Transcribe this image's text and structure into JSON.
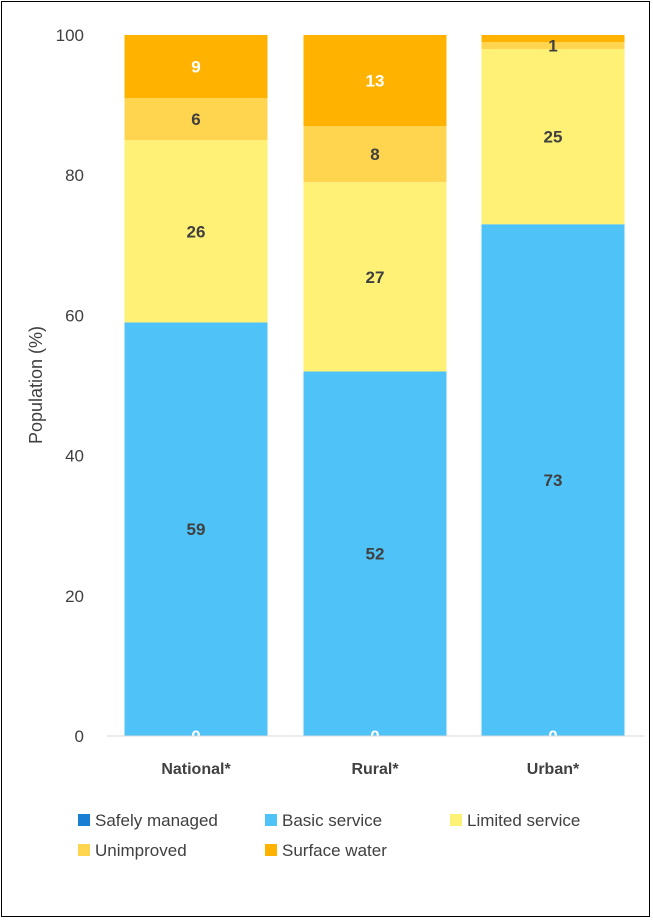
{
  "chart_data": {
    "type": "bar",
    "stacked": true,
    "categories": [
      "National*",
      "Rural*",
      "Urban*"
    ],
    "series": [
      {
        "name": "Safely managed",
        "values": [
          0,
          0,
          0
        ],
        "color": "#1a7ed4",
        "label_color": "#ffffff"
      },
      {
        "name": "Basic service",
        "values": [
          59,
          52,
          73
        ],
        "color": "#4fc3f7",
        "label_color": "#404040"
      },
      {
        "name": "Limited service",
        "values": [
          26,
          27,
          25
        ],
        "color": "#fff176",
        "label_color": "#404040"
      },
      {
        "name": "Unimproved",
        "values": [
          6,
          8,
          1
        ],
        "color": "#ffd54f",
        "label_color": "#404040"
      },
      {
        "name": "Surface water",
        "values": [
          9,
          13,
          1
        ],
        "color": "#ffb300",
        "label_color": "#ffffff"
      }
    ],
    "data_labels": [
      [
        "0",
        "0",
        "0"
      ],
      [
        "59",
        "52",
        "73"
      ],
      [
        "26",
        "27",
        "25"
      ],
      [
        "6",
        "8",
        "1"
      ],
      [
        "9",
        "13",
        ""
      ]
    ],
    "ylabel": "Population (%)",
    "yticks": [
      "0",
      "20",
      "40",
      "60",
      "80",
      "100"
    ],
    "ylim": [
      0,
      100
    ],
    "grid": false,
    "legend_position": "bottom"
  }
}
